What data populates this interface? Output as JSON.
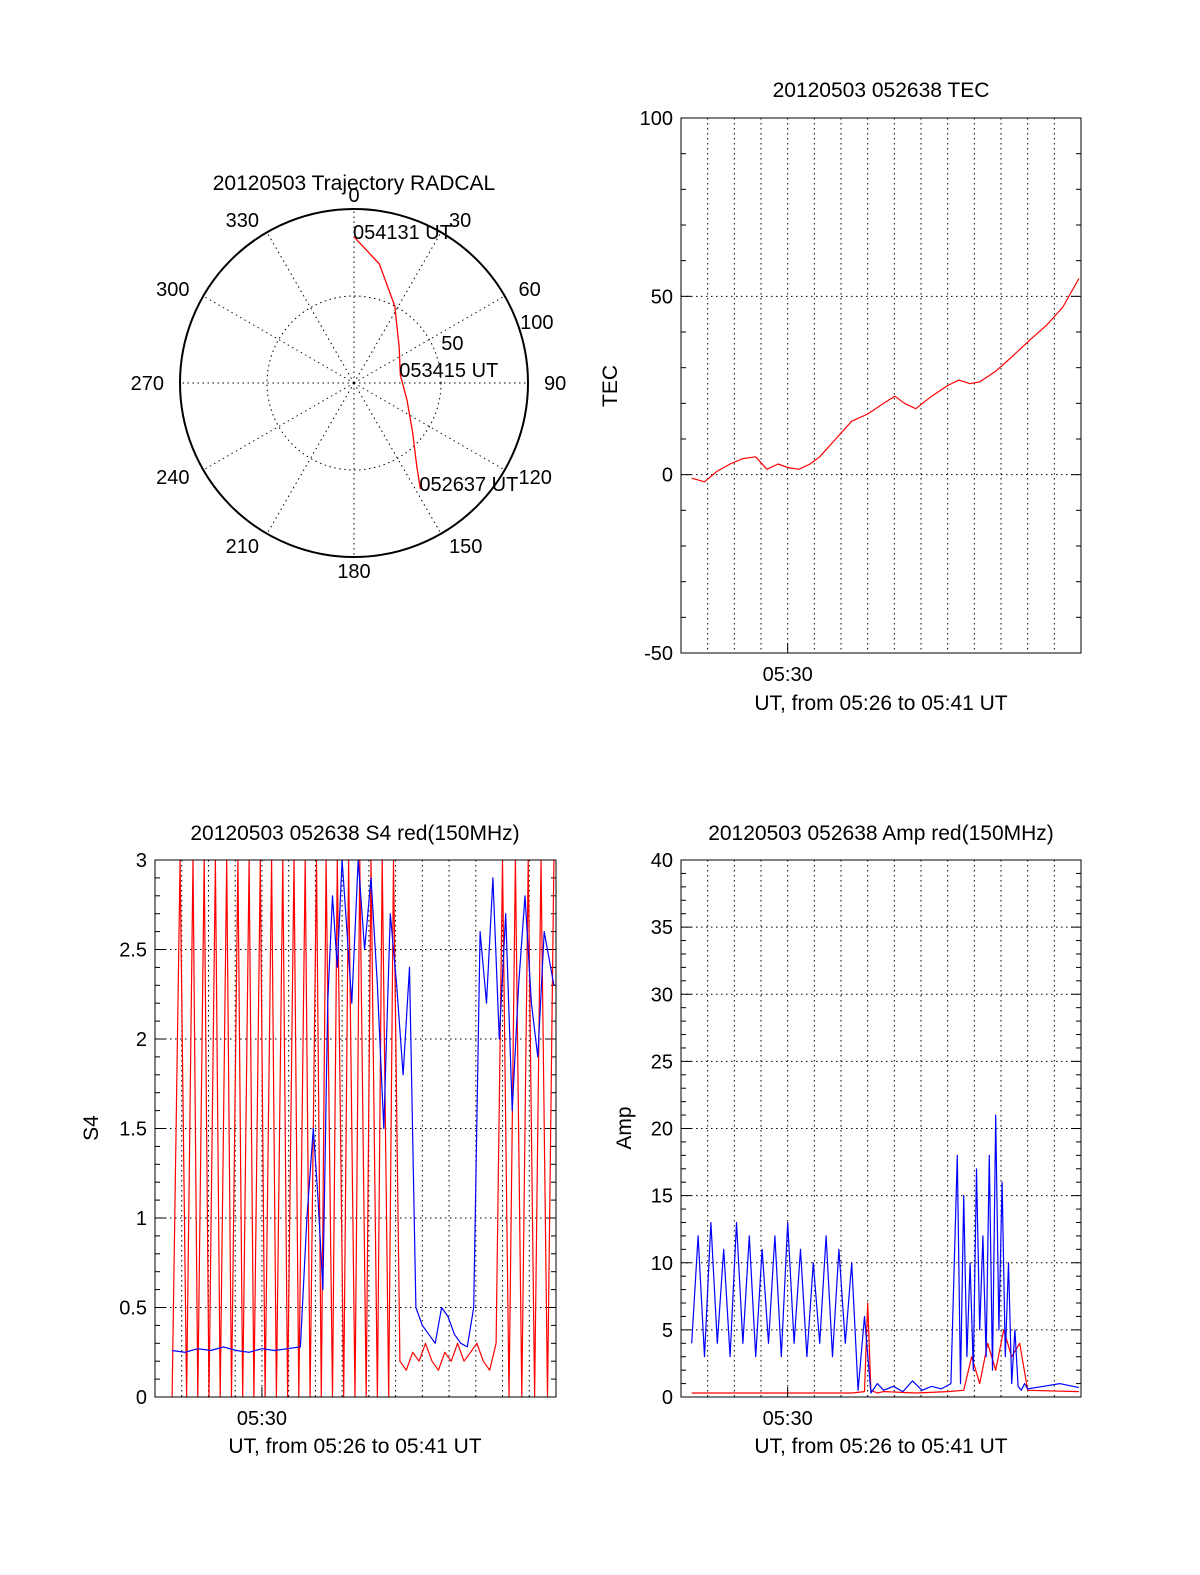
{
  "chart_data": [
    {
      "type": "polar",
      "title": "20120503 Trajectory RADCAL",
      "azimuth_labels": [
        "0",
        "30",
        "60",
        "90",
        "120",
        "150",
        "180",
        "210",
        "240",
        "270",
        "300",
        "330"
      ],
      "radial_tick_labels": [
        "50",
        "100"
      ],
      "r_max": 100,
      "grid": true,
      "series": [
        {
          "color": "#ff0000",
          "points": [
            {
              "az": 0,
              "r": 84
            },
            {
              "az": 12,
              "r": 70
            },
            {
              "az": 28,
              "r": 50
            },
            {
              "az": 52,
              "r": 33
            },
            {
              "az": 80,
              "r": 27
            },
            {
              "az": 108,
              "r": 32
            },
            {
              "az": 130,
              "r": 44
            },
            {
              "az": 143,
              "r": 60
            },
            {
              "az": 148,
              "r": 72
            }
          ]
        }
      ],
      "annotations": [
        {
          "text": "054131 UT",
          "az": 0,
          "r": 84
        },
        {
          "text": "053415 UT",
          "az": 80,
          "r": 27
        },
        {
          "text": "052637 UT",
          "az": 148,
          "r": 72
        }
      ]
    },
    {
      "type": "line",
      "title": "20120503 052638 TEC",
      "xlabel": "UT, from 05:26 to 05:41 UT",
      "ylabel": "TEC",
      "xlim": [
        5.43333,
        5.68333
      ],
      "ylim": [
        -50,
        100
      ],
      "xticks": [
        {
          "value": 5.5,
          "label": "05:30"
        }
      ],
      "yticks": [
        -50,
        0,
        50,
        100
      ],
      "grid": true,
      "series": [
        {
          "color": "#ff0000",
          "x": [
            5.44,
            5.448,
            5.456,
            5.464,
            5.472,
            5.48,
            5.487,
            5.494,
            5.5,
            5.507,
            5.514,
            5.52,
            5.53,
            5.54,
            5.55,
            5.56,
            5.567,
            5.573,
            5.58,
            5.59,
            5.6,
            5.607,
            5.614,
            5.62,
            5.63,
            5.64,
            5.652,
            5.662,
            5.672,
            5.682
          ],
          "y": [
            -1,
            -2,
            1,
            3,
            4.5,
            5,
            1.5,
            3,
            2,
            1.5,
            3,
            5,
            10,
            15,
            17,
            20,
            22,
            20,
            18.5,
            22,
            25,
            26.5,
            25.5,
            26,
            29,
            33,
            38,
            42,
            47,
            55
          ]
        }
      ]
    },
    {
      "type": "line",
      "title": "20120503 052638 S4 red(150MHz)",
      "xlabel": "UT, from 05:26 to 05:41 UT",
      "ylabel": "S4",
      "xlim": [
        5.43333,
        5.68333
      ],
      "ylim": [
        0,
        3
      ],
      "xticks": [
        {
          "value": 5.5,
          "label": "05:30"
        }
      ],
      "yticks": [
        0,
        0.5,
        1,
        1.5,
        2,
        2.5,
        3
      ],
      "ytick_labels": [
        "0",
        "0.5",
        "1",
        "1.5",
        "2",
        "2.5",
        "3"
      ],
      "grid": true,
      "series": [
        {
          "color": "#ff0000",
          "x": [
            5.444,
            5.449,
            5.453,
            5.457,
            5.46,
            5.464,
            5.467,
            5.471,
            5.474,
            5.478,
            5.481,
            5.485,
            5.488,
            5.492,
            5.495,
            5.499,
            5.502,
            5.506,
            5.509,
            5.513,
            5.516,
            5.52,
            5.523,
            5.527,
            5.53,
            5.534,
            5.537,
            5.54,
            5.544,
            5.547,
            5.551,
            5.554,
            5.558,
            5.561,
            5.565,
            5.568,
            5.572,
            5.575,
            5.579,
            5.582,
            5.586,
            5.59,
            5.594,
            5.598,
            5.602,
            5.606,
            5.61,
            5.614,
            5.618,
            5.622,
            5.626,
            5.63,
            5.634,
            5.638,
            5.642,
            5.646,
            5.65,
            5.654,
            5.658,
            5.662,
            5.666,
            5.67,
            5.674,
            5.678,
            5.682
          ],
          "y": [
            0,
            3,
            0,
            3,
            0,
            3,
            0,
            3,
            0,
            3,
            0,
            3,
            0,
            3,
            0,
            3,
            0,
            3,
            0,
            3,
            0,
            3,
            0,
            3,
            0,
            3,
            0,
            3,
            0,
            3,
            0,
            3,
            0,
            3,
            0,
            3,
            0,
            3,
            0,
            3,
            0.2,
            0.15,
            0.25,
            0.2,
            0.3,
            0.2,
            0.15,
            0.25,
            0.2,
            0.3,
            0.2,
            0.25,
            0.3,
            0.2,
            0.15,
            0.3,
            3,
            0,
            3,
            0,
            3,
            0,
            3,
            0,
            3
          ]
        },
        {
          "color": "#0000ff",
          "x": [
            5.444,
            5.452,
            5.46,
            5.468,
            5.476,
            5.484,
            5.492,
            5.5,
            5.508,
            5.516,
            5.524,
            5.528,
            5.532,
            5.535,
            5.538,
            5.541,
            5.544,
            5.547,
            5.55,
            5.553,
            5.556,
            5.56,
            5.564,
            5.568,
            5.572,
            5.576,
            5.58,
            5.584,
            5.588,
            5.592,
            5.596,
            5.6,
            5.604,
            5.608,
            5.612,
            5.616,
            5.62,
            5.624,
            5.628,
            5.632,
            5.636,
            5.64,
            5.644,
            5.648,
            5.652,
            5.656,
            5.66,
            5.664,
            5.668,
            5.672,
            5.676,
            5.682
          ],
          "y": [
            0.26,
            0.25,
            0.27,
            0.26,
            0.28,
            0.26,
            0.25,
            0.27,
            0.26,
            0.27,
            0.28,
            1,
            1.5,
            1.1,
            0.6,
            2.2,
            2.8,
            2.4,
            3,
            2.6,
            2.2,
            3,
            2.5,
            2.9,
            2.3,
            1.5,
            2.7,
            2.3,
            1.8,
            2.4,
            0.5,
            0.4,
            0.35,
            0.3,
            0.5,
            0.45,
            0.35,
            0.3,
            0.28,
            0.5,
            2.6,
            2.2,
            2.9,
            2,
            2.7,
            1.6,
            2.3,
            2.8,
            2.2,
            1.9,
            2.6,
            2.3
          ]
        }
      ]
    },
    {
      "type": "line",
      "title": "20120503 052638 Amp red(150MHz)",
      "xlabel": "UT, from 05:26 to 05:41 UT",
      "ylabel": "Amp",
      "xlim": [
        5.43333,
        5.68333
      ],
      "ylim": [
        0,
        40
      ],
      "xticks": [
        {
          "value": 5.5,
          "label": "05:30"
        }
      ],
      "yticks": [
        0,
        5,
        10,
        15,
        20,
        25,
        30,
        35,
        40
      ],
      "grid": true,
      "series": [
        {
          "color": "#ff0000",
          "x": [
            5.44,
            5.46,
            5.48,
            5.5,
            5.52,
            5.53,
            5.54,
            5.548,
            5.55,
            5.552,
            5.556,
            5.56,
            5.58,
            5.6,
            5.61,
            5.615,
            5.62,
            5.625,
            5.63,
            5.635,
            5.64,
            5.645,
            5.65,
            5.682
          ],
          "y": [
            0.3,
            0.3,
            0.3,
            0.3,
            0.3,
            0.3,
            0.3,
            0.4,
            7,
            0.5,
            0.3,
            0.4,
            0.3,
            0.4,
            0.5,
            3,
            1,
            4,
            2,
            5,
            3,
            4,
            0.5,
            0.4
          ]
        },
        {
          "color": "#0000ff",
          "x": [
            5.44,
            5.444,
            5.448,
            5.452,
            5.456,
            5.46,
            5.464,
            5.468,
            5.472,
            5.476,
            5.48,
            5.484,
            5.488,
            5.492,
            5.496,
            5.5,
            5.504,
            5.508,
            5.512,
            5.516,
            5.52,
            5.524,
            5.528,
            5.532,
            5.536,
            5.54,
            5.544,
            5.548,
            5.552,
            5.556,
            5.56,
            5.566,
            5.572,
            5.578,
            5.584,
            5.59,
            5.596,
            5.602,
            5.606,
            5.608,
            5.61,
            5.612,
            5.614,
            5.616,
            5.618,
            5.62,
            5.622,
            5.624,
            5.626,
            5.628,
            5.63,
            5.632,
            5.634,
            5.636,
            5.638,
            5.64,
            5.642,
            5.644,
            5.646,
            5.648,
            5.65,
            5.66,
            5.67,
            5.682
          ],
          "y": [
            4,
            12,
            3,
            13,
            4,
            11,
            3,
            13,
            4,
            12,
            3,
            11,
            4,
            12,
            3,
            13,
            4,
            11,
            3,
            10,
            4,
            12,
            3,
            11,
            4,
            10,
            0.5,
            6,
            0.3,
            1,
            0.5,
            0.8,
            0.4,
            1.2,
            0.5,
            0.8,
            0.6,
            1,
            18,
            1,
            15,
            3,
            10,
            2,
            17,
            5,
            12,
            3,
            18,
            2,
            21,
            5,
            16,
            3,
            10,
            1,
            5,
            0.8,
            0.5,
            1,
            0.6,
            0.8,
            1,
            0.7
          ]
        }
      ]
    }
  ]
}
